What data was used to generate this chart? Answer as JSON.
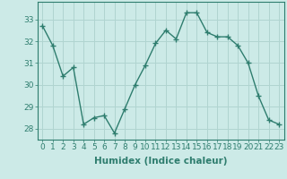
{
  "x": [
    0,
    1,
    2,
    3,
    4,
    5,
    6,
    7,
    8,
    9,
    10,
    11,
    12,
    13,
    14,
    15,
    16,
    17,
    18,
    19,
    20,
    21,
    22,
    23
  ],
  "y": [
    32.7,
    31.8,
    30.4,
    30.8,
    28.2,
    28.5,
    28.6,
    27.8,
    28.9,
    30.0,
    30.9,
    31.9,
    32.5,
    32.1,
    33.3,
    33.3,
    32.4,
    32.2,
    32.2,
    31.8,
    31.0,
    29.5,
    28.4,
    28.2
  ],
  "line_color": "#2e7d6e",
  "marker": "+",
  "marker_size": 4,
  "bg_color": "#cceae7",
  "grid_color": "#b0d4d0",
  "xlabel": "Humidex (Indice chaleur)",
  "ylim": [
    27.5,
    33.8
  ],
  "xlim": [
    -0.5,
    23.5
  ],
  "yticks": [
    28,
    29,
    30,
    31,
    32,
    33
  ],
  "xticks": [
    0,
    1,
    2,
    3,
    4,
    5,
    6,
    7,
    8,
    9,
    10,
    11,
    12,
    13,
    14,
    15,
    16,
    17,
    18,
    19,
    20,
    21,
    22,
    23
  ],
  "xtick_labels": [
    "0",
    "1",
    "2",
    "3",
    "4",
    "5",
    "6",
    "7",
    "8",
    "9",
    "10",
    "11",
    "12",
    "13",
    "14",
    "15",
    "16",
    "17",
    "18",
    "19",
    "20",
    "21",
    "22",
    "23"
  ],
  "tick_color": "#2e7d6e",
  "axis_color": "#2e7d6e",
  "tick_fontsize": 6.5,
  "xlabel_fontsize": 7.5
}
